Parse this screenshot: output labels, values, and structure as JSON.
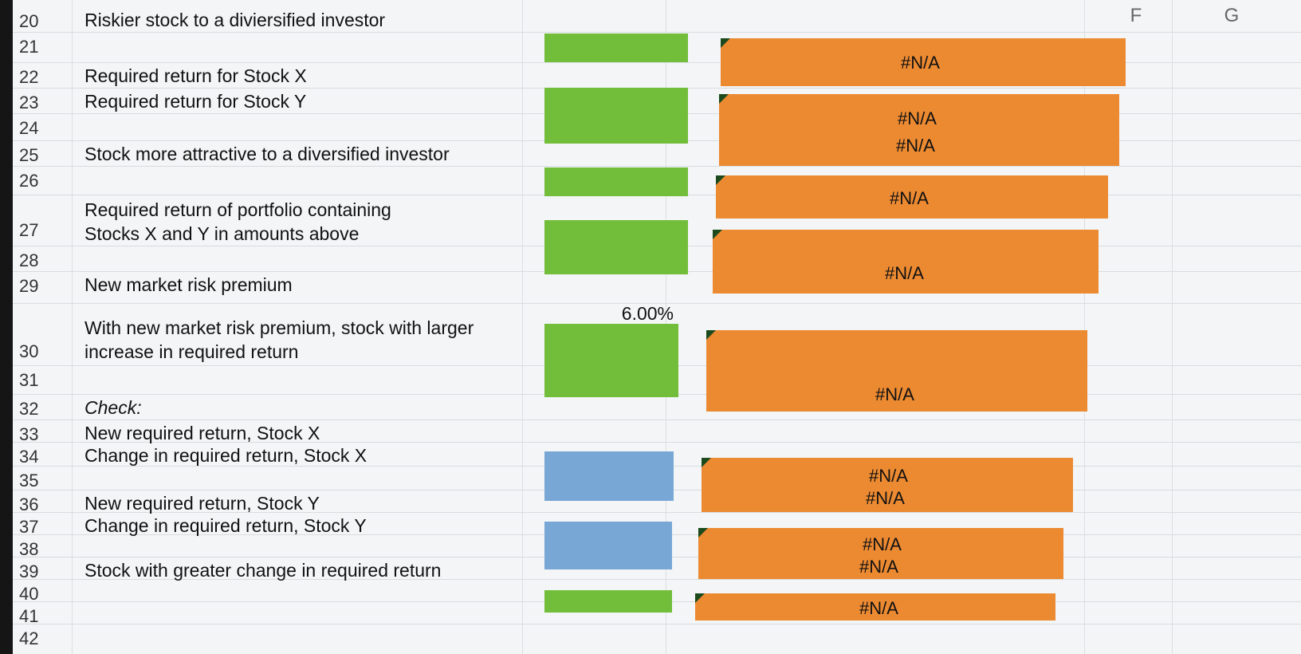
{
  "columns": {
    "f": "F",
    "g": "G"
  },
  "rows": [
    {
      "num": "20",
      "label": "Riskier stock to a diviersified investor"
    },
    {
      "num": "21",
      "label": ""
    },
    {
      "num": "22",
      "label": "Required return for Stock X"
    },
    {
      "num": "23",
      "label": "Required return for Stock Y"
    },
    {
      "num": "24",
      "label": ""
    },
    {
      "num": "25",
      "label": "Stock more attractive to a diversified investor"
    },
    {
      "num": "26",
      "label": ""
    },
    {
      "num": "27",
      "label": "Required return of portfolio containing\nStocks X and Y in amounts above"
    },
    {
      "num": "28",
      "label": ""
    },
    {
      "num": "29",
      "label": "New market risk premium"
    },
    {
      "num": "30",
      "label": "With new market risk premium, stock with larger\nincrease in required return"
    },
    {
      "num": "31",
      "label": ""
    },
    {
      "num": "32",
      "label": "Check:"
    },
    {
      "num": "33",
      "label": "New required return, Stock X"
    },
    {
      "num": "34",
      "label": "Change in required return, Stock X"
    },
    {
      "num": "35",
      "label": ""
    },
    {
      "num": "36",
      "label": "New required return, Stock Y"
    },
    {
      "num": "37",
      "label": "Change in required return, Stock Y"
    },
    {
      "num": "38",
      "label": ""
    },
    {
      "num": "39",
      "label": "Stock with greater change in required return"
    },
    {
      "num": "40",
      "label": ""
    },
    {
      "num": "41",
      "label": ""
    },
    {
      "num": "42",
      "label": ""
    }
  ],
  "values": {
    "market_risk_premium": "6.00%",
    "na": "#N/A"
  },
  "colors": {
    "input_green": "#72bd3a",
    "input_blue": "#78a7d6",
    "output_orange": "#ec8a32"
  }
}
